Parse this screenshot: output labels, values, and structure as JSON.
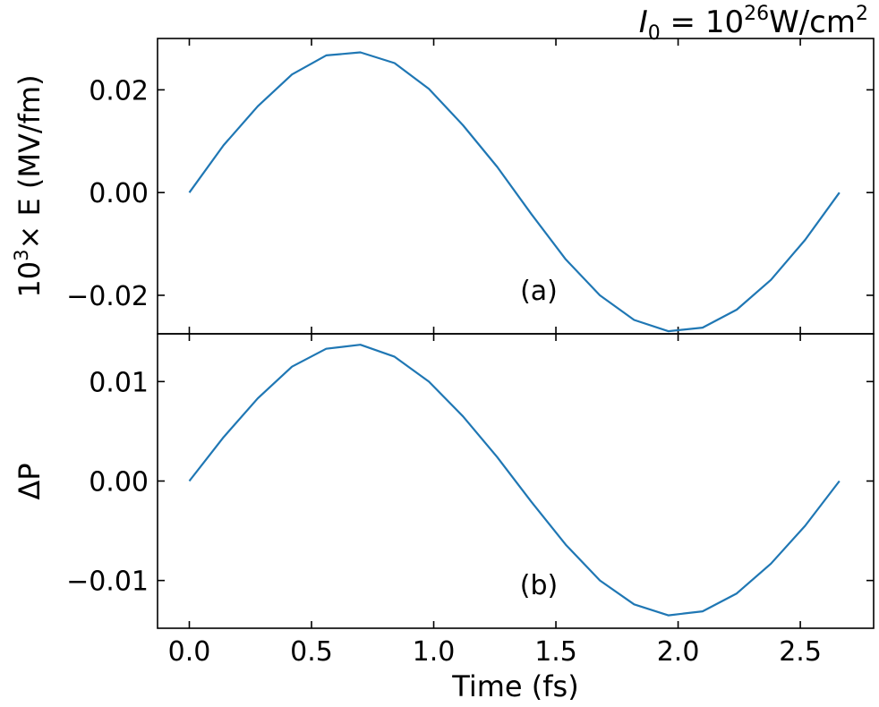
{
  "figure": {
    "title_text": "I",
    "title_sub": "0",
    "title_eq": " = 10",
    "title_exp": "26",
    "title_unit": "W/cm",
    "title_unit_exp": "2"
  },
  "chart_data": [
    {
      "type": "line",
      "panel_label": "(a)",
      "ylabel_prefix": "10",
      "ylabel_exp": "3",
      "ylabel_rest": "× E (MV/fm)",
      "xlabel": "",
      "xlim": [
        -0.13,
        2.8
      ],
      "ylim": [
        -0.0275,
        0.03
      ],
      "yticks": [
        {
          "value": -0.02,
          "label": "−0.02"
        },
        {
          "value": 0.0,
          "label": "0.00"
        },
        {
          "value": 0.02,
          "label": "0.02"
        }
      ],
      "line_color": "#1f77b4",
      "series": [
        {
          "x": [
            0.0,
            0.14,
            0.28,
            0.42,
            0.56,
            0.7,
            0.84,
            0.98,
            1.12,
            1.26,
            1.4,
            1.54,
            1.68,
            1.82,
            1.96,
            2.1,
            2.24,
            2.38,
            2.52,
            2.66
          ],
          "y": [
            0.0,
            0.0092,
            0.0168,
            0.023,
            0.0267,
            0.0273,
            0.0252,
            0.0202,
            0.0131,
            0.005,
            -0.0042,
            -0.013,
            -0.02,
            -0.0248,
            -0.027,
            -0.0263,
            -0.0228,
            -0.017,
            -0.0092,
            0.0
          ]
        }
      ]
    },
    {
      "type": "line",
      "panel_label": "(b)",
      "ylabel": "ΔP",
      "xlabel": "Time (fs)",
      "xlim": [
        -0.13,
        2.8
      ],
      "ylim": [
        -0.0148,
        0.0148
      ],
      "xticks": [
        {
          "value": 0.0,
          "label": "0.0"
        },
        {
          "value": 0.5,
          "label": "0.5"
        },
        {
          "value": 1.0,
          "label": "1.0"
        },
        {
          "value": 1.5,
          "label": "1.5"
        },
        {
          "value": 2.0,
          "label": "2.0"
        },
        {
          "value": 2.5,
          "label": "2.5"
        }
      ],
      "yticks": [
        {
          "value": -0.01,
          "label": "−0.01"
        },
        {
          "value": 0.0,
          "label": "0.00"
        },
        {
          "value": 0.01,
          "label": "0.01"
        }
      ],
      "line_color": "#1f77b4",
      "series": [
        {
          "x": [
            0.0,
            0.14,
            0.28,
            0.42,
            0.56,
            0.7,
            0.84,
            0.98,
            1.12,
            1.26,
            1.4,
            1.54,
            1.68,
            1.82,
            1.96,
            2.1,
            2.24,
            2.38,
            2.52,
            2.66
          ],
          "y": [
            0.0,
            0.0044,
            0.0083,
            0.0115,
            0.0133,
            0.0137,
            0.0125,
            0.01,
            0.0065,
            0.0024,
            -0.0021,
            -0.0064,
            -0.01,
            -0.0124,
            -0.0135,
            -0.0131,
            -0.0113,
            -0.0083,
            -0.0045,
            0.0
          ]
        }
      ]
    }
  ]
}
